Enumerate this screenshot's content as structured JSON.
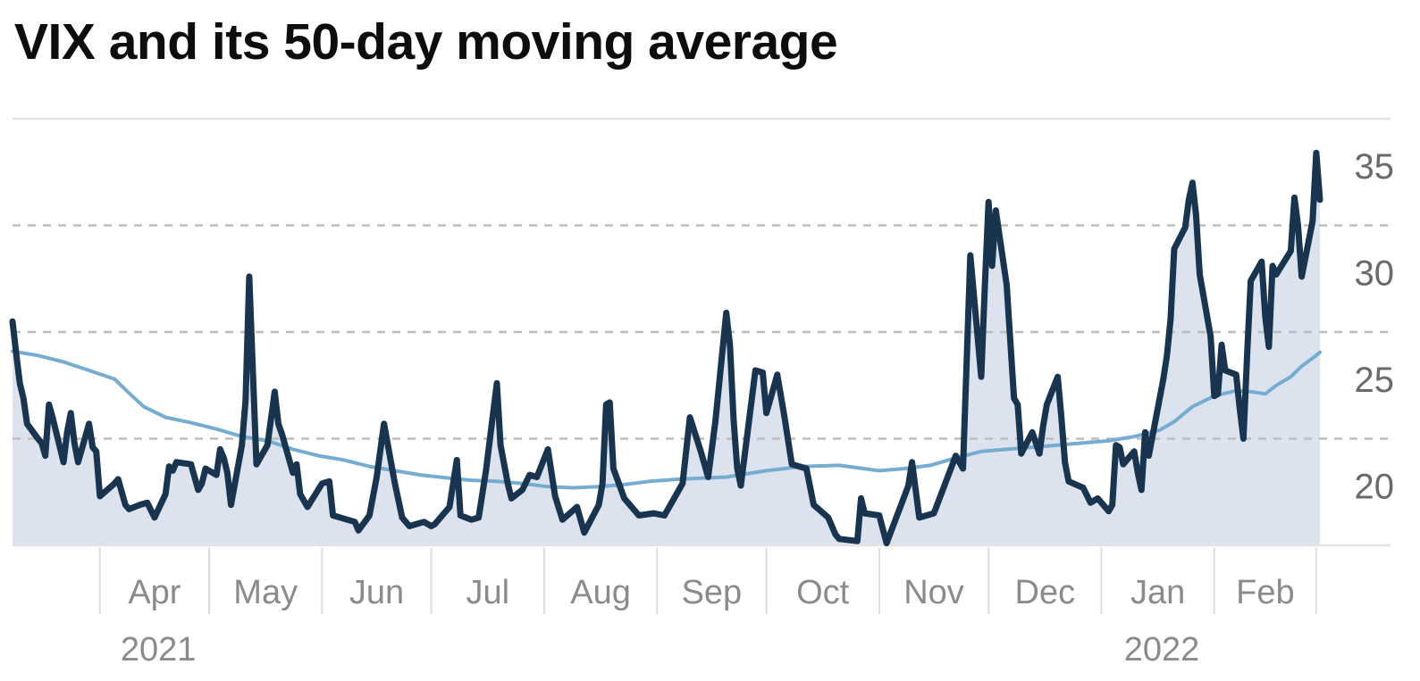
{
  "title": "VIX and its 50-day moving average",
  "colors": {
    "vix_line": "#18344e",
    "ma_line": "#76acd0",
    "area_fill": "#dce3ee",
    "grid_solid": "#e3e3e3",
    "grid_dashed": "#bdbdbd",
    "month_tick": "#dedede",
    "y_label": "#6a6a6a",
    "x_label": "#8b8b8b",
    "title_text": "#0d0d0d",
    "background": "#ffffff"
  },
  "chart_data": {
    "type": "line",
    "title": "VIX and its 50-day moving average",
    "legend": "none",
    "grid": "horizontal-dashed",
    "area_fill_under_first_series": true,
    "y_axis": {
      "min": 15,
      "max": 35,
      "gridline_values": [
        15,
        20,
        25,
        30,
        35
      ],
      "tick_labels": [
        20,
        25,
        30,
        35
      ],
      "label_side": "right"
    },
    "x_axis": {
      "start": "2021-03-08",
      "end": "2022-03-02",
      "months": [
        {
          "label": "Apr",
          "start": "2021-04-01"
        },
        {
          "label": "May",
          "start": "2021-05-01"
        },
        {
          "label": "Jun",
          "start": "2021-06-01"
        },
        {
          "label": "Jul",
          "start": "2021-07-01"
        },
        {
          "label": "Aug",
          "start": "2021-08-01"
        },
        {
          "label": "Sep",
          "start": "2021-09-01"
        },
        {
          "label": "Oct",
          "start": "2021-10-01"
        },
        {
          "label": "Nov",
          "start": "2021-11-01"
        },
        {
          "label": "Dec",
          "start": "2021-12-01"
        },
        {
          "label": "Jan",
          "start": "2022-01-01"
        },
        {
          "label": "Feb",
          "start": "2022-02-01"
        }
      ],
      "end_tick": "2022-03-01",
      "year_labels": [
        {
          "label": "2021",
          "under_month": "Apr"
        },
        {
          "label": "2022",
          "under_month": "Jan"
        }
      ]
    },
    "series": [
      {
        "name": "VIX",
        "color": "#18344e",
        "points": [
          [
            "2021-03-08",
            25.5
          ],
          [
            "2021-03-09",
            24.0
          ],
          [
            "2021-03-10",
            22.6
          ],
          [
            "2021-03-11",
            21.9
          ],
          [
            "2021-03-12",
            20.7
          ],
          [
            "2021-03-15",
            20.0
          ],
          [
            "2021-03-16",
            19.8
          ],
          [
            "2021-03-17",
            19.2
          ],
          [
            "2021-03-18",
            21.6
          ],
          [
            "2021-03-19",
            21.0
          ],
          [
            "2021-03-22",
            18.9
          ],
          [
            "2021-03-23",
            20.3
          ],
          [
            "2021-03-24",
            21.2
          ],
          [
            "2021-03-25",
            19.8
          ],
          [
            "2021-03-26",
            18.9
          ],
          [
            "2021-03-29",
            20.7
          ],
          [
            "2021-03-30",
            19.6
          ],
          [
            "2021-03-31",
            19.4
          ],
          [
            "2021-04-01",
            17.3
          ],
          [
            "2021-04-05",
            17.9
          ],
          [
            "2021-04-06",
            18.1
          ],
          [
            "2021-04-08",
            16.9
          ],
          [
            "2021-04-09",
            16.7
          ],
          [
            "2021-04-12",
            16.9
          ],
          [
            "2021-04-14",
            17.0
          ],
          [
            "2021-04-16",
            16.3
          ],
          [
            "2021-04-19",
            17.4
          ],
          [
            "2021-04-20",
            18.7
          ],
          [
            "2021-04-21",
            18.5
          ],
          [
            "2021-04-22",
            18.9
          ],
          [
            "2021-04-26",
            18.8
          ],
          [
            "2021-04-28",
            17.6
          ],
          [
            "2021-04-29",
            17.9
          ],
          [
            "2021-04-30",
            18.6
          ],
          [
            "2021-05-03",
            18.3
          ],
          [
            "2021-05-04",
            19.5
          ],
          [
            "2021-05-05",
            19.1
          ],
          [
            "2021-05-06",
            18.4
          ],
          [
            "2021-05-07",
            16.9
          ],
          [
            "2021-05-10",
            19.7
          ],
          [
            "2021-05-11",
            21.8
          ],
          [
            "2021-05-12",
            27.6
          ],
          [
            "2021-05-13",
            23.1
          ],
          [
            "2021-05-14",
            18.8
          ],
          [
            "2021-05-17",
            19.7
          ],
          [
            "2021-05-19",
            22.2
          ],
          [
            "2021-05-20",
            20.7
          ],
          [
            "2021-05-21",
            20.2
          ],
          [
            "2021-05-24",
            18.4
          ],
          [
            "2021-05-25",
            18.8
          ],
          [
            "2021-05-26",
            17.4
          ],
          [
            "2021-05-28",
            16.8
          ],
          [
            "2021-06-01",
            17.9
          ],
          [
            "2021-06-03",
            18.0
          ],
          [
            "2021-06-04",
            16.4
          ],
          [
            "2021-06-08",
            16.2
          ],
          [
            "2021-06-10",
            16.1
          ],
          [
            "2021-06-11",
            15.7
          ],
          [
            "2021-06-14",
            16.4
          ],
          [
            "2021-06-16",
            18.2
          ],
          [
            "2021-06-18",
            20.7
          ],
          [
            "2021-06-21",
            17.9
          ],
          [
            "2021-06-23",
            16.3
          ],
          [
            "2021-06-25",
            15.9
          ],
          [
            "2021-06-29",
            16.1
          ],
          [
            "2021-07-01",
            15.9
          ],
          [
            "2021-07-02",
            16.0
          ],
          [
            "2021-07-06",
            16.8
          ],
          [
            "2021-07-08",
            19.0
          ],
          [
            "2021-07-09",
            16.4
          ],
          [
            "2021-07-12",
            16.2
          ],
          [
            "2021-07-14",
            16.3
          ],
          [
            "2021-07-16",
            18.5
          ],
          [
            "2021-07-19",
            22.6
          ],
          [
            "2021-07-20",
            19.7
          ],
          [
            "2021-07-22",
            17.9
          ],
          [
            "2021-07-23",
            17.2
          ],
          [
            "2021-07-26",
            17.6
          ],
          [
            "2021-07-28",
            18.3
          ],
          [
            "2021-07-30",
            18.2
          ],
          [
            "2021-08-02",
            19.5
          ],
          [
            "2021-08-04",
            17.3
          ],
          [
            "2021-08-06",
            16.2
          ],
          [
            "2021-08-10",
            16.8
          ],
          [
            "2021-08-12",
            15.6
          ],
          [
            "2021-08-16",
            16.9
          ],
          [
            "2021-08-17",
            17.9
          ],
          [
            "2021-08-18",
            21.6
          ],
          [
            "2021-08-19",
            21.7
          ],
          [
            "2021-08-20",
            18.6
          ],
          [
            "2021-08-23",
            17.2
          ],
          [
            "2021-08-25",
            16.8
          ],
          [
            "2021-08-27",
            16.4
          ],
          [
            "2021-08-31",
            16.5
          ],
          [
            "2021-09-03",
            16.4
          ],
          [
            "2021-09-08",
            17.9
          ],
          [
            "2021-09-10",
            21.0
          ],
          [
            "2021-09-13",
            19.4
          ],
          [
            "2021-09-15",
            18.2
          ],
          [
            "2021-09-17",
            20.8
          ],
          [
            "2021-09-20",
            25.9
          ],
          [
            "2021-09-21",
            24.4
          ],
          [
            "2021-09-22",
            20.9
          ],
          [
            "2021-09-23",
            18.6
          ],
          [
            "2021-09-24",
            17.8
          ],
          [
            "2021-09-28",
            23.2
          ],
          [
            "2021-09-30",
            23.1
          ],
          [
            "2021-10-01",
            21.2
          ],
          [
            "2021-10-04",
            23.0
          ],
          [
            "2021-10-06",
            21.0
          ],
          [
            "2021-10-08",
            18.8
          ],
          [
            "2021-10-12",
            18.6
          ],
          [
            "2021-10-14",
            16.9
          ],
          [
            "2021-10-18",
            16.3
          ],
          [
            "2021-10-20",
            15.5
          ],
          [
            "2021-10-21",
            15.3
          ],
          [
            "2021-10-26",
            15.2
          ],
          [
            "2021-10-27",
            17.2
          ],
          [
            "2021-10-28",
            16.5
          ],
          [
            "2021-11-01",
            16.4
          ],
          [
            "2021-11-03",
            15.1
          ],
          [
            "2021-11-09",
            17.8
          ],
          [
            "2021-11-10",
            18.9
          ],
          [
            "2021-11-12",
            16.3
          ],
          [
            "2021-11-16",
            16.5
          ],
          [
            "2021-11-18",
            17.4
          ],
          [
            "2021-11-22",
            19.2
          ],
          [
            "2021-11-24",
            18.6
          ],
          [
            "2021-11-26",
            28.6
          ],
          [
            "2021-11-29",
            22.9
          ],
          [
            "2021-11-30",
            27.2
          ],
          [
            "2021-12-01",
            31.1
          ],
          [
            "2021-12-02",
            28.1
          ],
          [
            "2021-12-03",
            30.7
          ],
          [
            "2021-12-06",
            27.2
          ],
          [
            "2021-12-08",
            21.9
          ],
          [
            "2021-12-09",
            21.6
          ],
          [
            "2021-12-10",
            19.3
          ],
          [
            "2021-12-13",
            20.3
          ],
          [
            "2021-12-15",
            19.3
          ],
          [
            "2021-12-16",
            20.6
          ],
          [
            "2021-12-17",
            21.6
          ],
          [
            "2021-12-20",
            22.9
          ],
          [
            "2021-12-21",
            21.0
          ],
          [
            "2021-12-22",
            18.9
          ],
          [
            "2021-12-23",
            18.0
          ],
          [
            "2021-12-27",
            17.7
          ],
          [
            "2021-12-29",
            17.0
          ],
          [
            "2021-12-31",
            17.2
          ],
          [
            "2022-01-03",
            16.6
          ],
          [
            "2022-01-04",
            16.9
          ],
          [
            "2022-01-05",
            19.7
          ],
          [
            "2022-01-06",
            19.6
          ],
          [
            "2022-01-07",
            18.8
          ],
          [
            "2022-01-10",
            19.4
          ],
          [
            "2022-01-11",
            18.4
          ],
          [
            "2022-01-12",
            17.6
          ],
          [
            "2022-01-13",
            20.3
          ],
          [
            "2022-01-14",
            19.2
          ],
          [
            "2022-01-18",
            22.8
          ],
          [
            "2022-01-19",
            23.9
          ],
          [
            "2022-01-20",
            25.6
          ],
          [
            "2022-01-21",
            28.9
          ],
          [
            "2022-01-24",
            29.9
          ],
          [
            "2022-01-25",
            31.2
          ],
          [
            "2022-01-26",
            32.0
          ],
          [
            "2022-01-27",
            30.5
          ],
          [
            "2022-01-28",
            27.7
          ],
          [
            "2022-01-31",
            24.8
          ],
          [
            "2022-02-01",
            22.0
          ],
          [
            "2022-02-02",
            22.1
          ],
          [
            "2022-02-03",
            24.4
          ],
          [
            "2022-02-04",
            23.2
          ],
          [
            "2022-02-07",
            23.0
          ],
          [
            "2022-02-08",
            21.4
          ],
          [
            "2022-02-09",
            20.0
          ],
          [
            "2022-02-10",
            23.9
          ],
          [
            "2022-02-11",
            27.4
          ],
          [
            "2022-02-14",
            28.3
          ],
          [
            "2022-02-15",
            25.7
          ],
          [
            "2022-02-16",
            24.3
          ],
          [
            "2022-02-17",
            28.1
          ],
          [
            "2022-02-18",
            27.7
          ],
          [
            "2022-02-22",
            28.8
          ],
          [
            "2022-02-23",
            31.3
          ],
          [
            "2022-02-24",
            30.0
          ],
          [
            "2022-02-25",
            27.6
          ],
          [
            "2022-02-28",
            30.2
          ],
          [
            "2022-03-01",
            33.4
          ],
          [
            "2022-03-02",
            31.2
          ]
        ]
      },
      {
        "name": "50-day moving average",
        "color": "#76acd0",
        "points": [
          [
            "2021-03-08",
            24.1
          ],
          [
            "2021-03-15",
            23.9
          ],
          [
            "2021-03-22",
            23.6
          ],
          [
            "2021-03-29",
            23.2
          ],
          [
            "2021-04-05",
            22.8
          ],
          [
            "2021-04-08",
            22.3
          ],
          [
            "2021-04-13",
            21.5
          ],
          [
            "2021-04-19",
            21.0
          ],
          [
            "2021-04-26",
            20.75
          ],
          [
            "2021-05-03",
            20.45
          ],
          [
            "2021-05-10",
            20.1
          ],
          [
            "2021-05-17",
            19.9
          ],
          [
            "2021-05-24",
            19.5
          ],
          [
            "2021-05-31",
            19.2
          ],
          [
            "2021-06-07",
            19.0
          ],
          [
            "2021-06-14",
            18.7
          ],
          [
            "2021-06-21",
            18.5
          ],
          [
            "2021-06-28",
            18.3
          ],
          [
            "2021-07-06",
            18.15
          ],
          [
            "2021-07-12",
            18.05
          ],
          [
            "2021-07-19",
            18.0
          ],
          [
            "2021-07-26",
            17.9
          ],
          [
            "2021-08-02",
            17.75
          ],
          [
            "2021-08-09",
            17.7
          ],
          [
            "2021-08-16",
            17.75
          ],
          [
            "2021-08-23",
            17.85
          ],
          [
            "2021-08-30",
            18.0
          ],
          [
            "2021-09-07",
            18.1
          ],
          [
            "2021-09-20",
            18.2
          ],
          [
            "2021-10-01",
            18.5
          ],
          [
            "2021-10-11",
            18.7
          ],
          [
            "2021-10-21",
            18.75
          ],
          [
            "2021-11-01",
            18.5
          ],
          [
            "2021-11-08",
            18.6
          ],
          [
            "2021-11-15",
            18.75
          ],
          [
            "2021-11-22",
            19.1
          ],
          [
            "2021-11-29",
            19.4
          ],
          [
            "2021-12-06",
            19.5
          ],
          [
            "2021-12-13",
            19.6
          ],
          [
            "2021-12-20",
            19.7
          ],
          [
            "2021-12-27",
            19.8
          ],
          [
            "2022-01-03",
            19.9
          ],
          [
            "2022-01-10",
            20.1
          ],
          [
            "2022-01-17",
            20.4
          ],
          [
            "2022-01-21",
            20.8
          ],
          [
            "2022-01-26",
            21.5
          ],
          [
            "2022-02-01",
            22.0
          ],
          [
            "2022-02-07",
            22.25
          ],
          [
            "2022-02-11",
            22.2
          ],
          [
            "2022-02-15",
            22.1
          ],
          [
            "2022-02-18",
            22.5
          ],
          [
            "2022-02-22",
            22.9
          ],
          [
            "2022-02-25",
            23.4
          ],
          [
            "2022-03-01",
            23.9
          ],
          [
            "2022-03-02",
            24.05
          ]
        ]
      }
    ]
  }
}
